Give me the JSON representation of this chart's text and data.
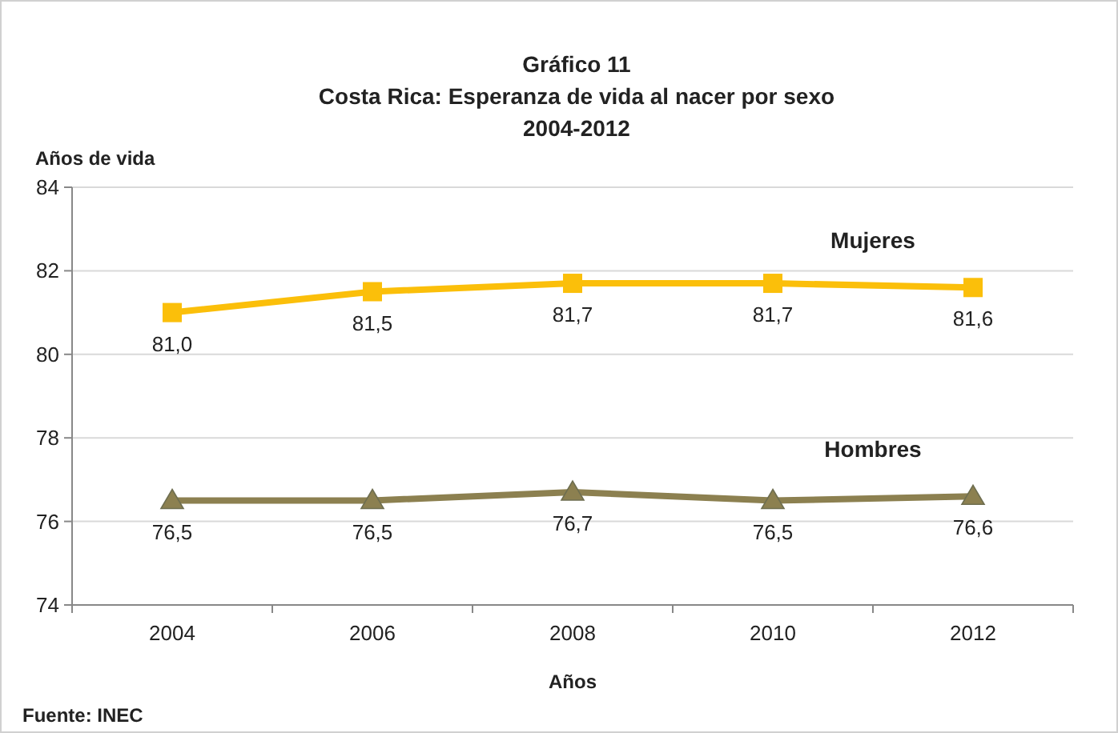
{
  "chart_data": {
    "type": "line",
    "title": "Gráfico 11\nCosta Rica: Esperanza de vida al nacer por sexo\n2004-2012",
    "ylabel": "Años de vida",
    "xlabel": "Años",
    "annotations": [
      "Fuente: INEC"
    ],
    "categories": [
      "2004",
      "2006",
      "2008",
      "2010",
      "2012"
    ],
    "series": [
      {
        "name": "Mujeres",
        "color": "#fbbf0a",
        "marker": "square",
        "values": [
          81.0,
          81.5,
          81.7,
          81.7,
          81.6
        ],
        "value_labels": [
          "81,0",
          "81,5",
          "81,7",
          "81,7",
          "81,6"
        ]
      },
      {
        "name": "Hombres",
        "color": "#8c8050",
        "marker": "triangle",
        "values": [
          76.5,
          76.5,
          76.7,
          76.5,
          76.6
        ],
        "value_labels": [
          "76,5",
          "76,5",
          "76,7",
          "76,5",
          "76,6"
        ]
      }
    ],
    "ylim": [
      74,
      84
    ],
    "yticks": [
      74,
      76,
      78,
      80,
      82,
      84
    ],
    "grid": "y",
    "legend": false
  }
}
